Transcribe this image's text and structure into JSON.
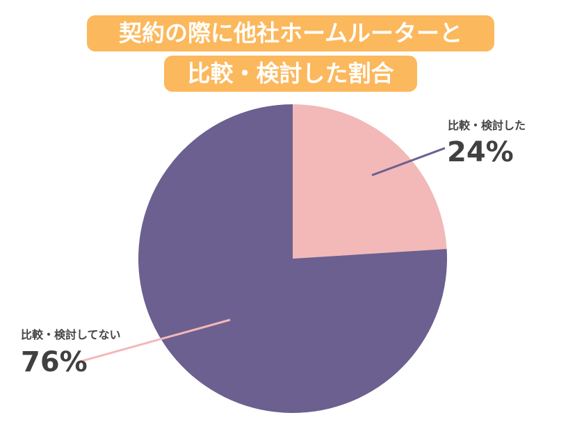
{
  "title": {
    "line1": "契約の際に他社ホームルーターと",
    "line2": "比較・検討した割合"
  },
  "colors": {
    "title_bg": "#fcb85c",
    "title_text": "#ffffff",
    "compared": "#f3b8b8",
    "not_compared": "#6b6090",
    "label_text": "#444444"
  },
  "chart_data": {
    "type": "pie",
    "start": "12 o'clock, clockwise",
    "slices": [
      {
        "label": "比較・検討した",
        "value": 24,
        "display": "24%"
      },
      {
        "label": "比較・検討してない",
        "value": 76,
        "display": "76%"
      }
    ]
  }
}
